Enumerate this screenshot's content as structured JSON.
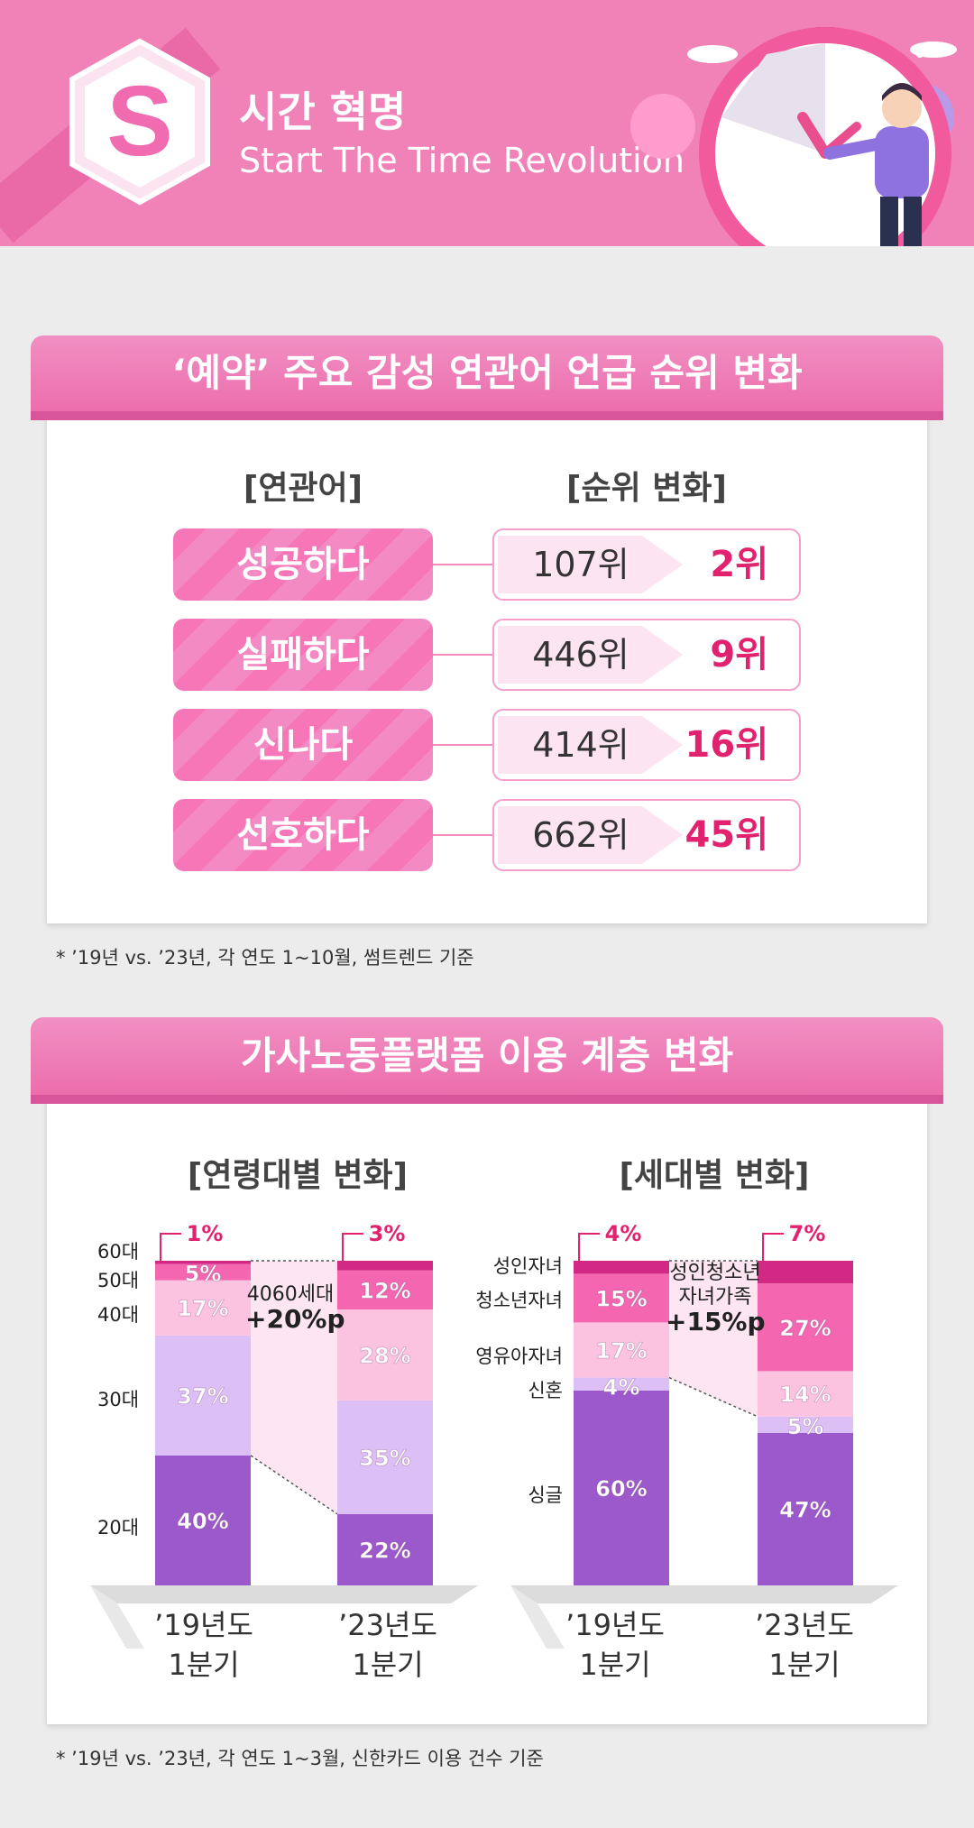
{
  "header": {
    "logo_letter": "S",
    "title_ko": "시간 혁명",
    "title_en": "Start The Time Revolution"
  },
  "section1": {
    "title": "‘예약’ 주요 감성 연관어 언급 순위 변화",
    "col_word": "[연관어]",
    "col_rank": "[순위 변화]",
    "rows": [
      {
        "word": "성공하다",
        "from": "107위",
        "to": "2위"
      },
      {
        "word": "실패하다",
        "from": "446위",
        "to": "9위"
      },
      {
        "word": "신나다",
        "from": "414위",
        "to": "16위"
      },
      {
        "word": "선호하다",
        "from": "662위",
        "to": "45위"
      }
    ],
    "note": "*  ’19년 vs. ’23년, 각 연도 1~10월, 썸트렌드 기준"
  },
  "section2": {
    "title": "가사노동플랫폼 이용 계층 변화",
    "age_head": "[연령대별 변화]",
    "gen_head": "[세대별 변화]",
    "age_annot_1": "4060세대",
    "age_annot_2": "+20%p",
    "gen_annot_1": "성인청소년",
    "gen_annot_2": "자녀가족",
    "gen_annot_3": "+15%p",
    "x_labels": [
      {
        "line1": "’19년도",
        "line2": "1분기"
      },
      {
        "line1": "’23년도",
        "line2": "1분기"
      },
      {
        "line1": "’19년도",
        "line2": "1분기"
      },
      {
        "line1": "’23년도",
        "line2": "1분기"
      }
    ],
    "note": "*  ’19년 vs. ’23년, 각 연도 1~3월, 신한카드 이용 건수 기준"
  },
  "chart_data": [
    {
      "type": "bar",
      "stacked": true,
      "title": "[연령대별 변화]",
      "categories": [
        "’19년도 1분기",
        "’23년도 1분기"
      ],
      "series": [
        {
          "name": "20대",
          "values": [
            40,
            22
          ],
          "color": "#9b59cc"
        },
        {
          "name": "30대",
          "values": [
            37,
            35
          ],
          "color": "#dcc0f5"
        },
        {
          "name": "40대",
          "values": [
            17,
            28
          ],
          "color": "#fcc3e0"
        },
        {
          "name": "50대",
          "values": [
            5,
            12
          ],
          "color": "#f466b0"
        },
        {
          "name": "60대",
          "values": [
            1,
            3
          ],
          "color": "#d22a84"
        }
      ],
      "value_suffix": "%",
      "annotation": "4060세대 +20%p"
    },
    {
      "type": "bar",
      "stacked": true,
      "title": "[세대별 변화]",
      "categories": [
        "’19년도 1분기",
        "’23년도 1분기"
      ],
      "series": [
        {
          "name": "싱글",
          "values": [
            60,
            47
          ],
          "color": "#9b59cc"
        },
        {
          "name": "신혼",
          "values": [
            4,
            5
          ],
          "color": "#dcc0f5"
        },
        {
          "name": "영유아자녀",
          "values": [
            17,
            14
          ],
          "color": "#fcc3e0"
        },
        {
          "name": "청소년자녀",
          "values": [
            15,
            27
          ],
          "color": "#f466b0"
        },
        {
          "name": "성인자녀",
          "values": [
            4,
            7
          ],
          "color": "#d22a84"
        }
      ],
      "value_suffix": "%",
      "annotation": "성인청소년 자녀가족 +15%p"
    }
  ]
}
